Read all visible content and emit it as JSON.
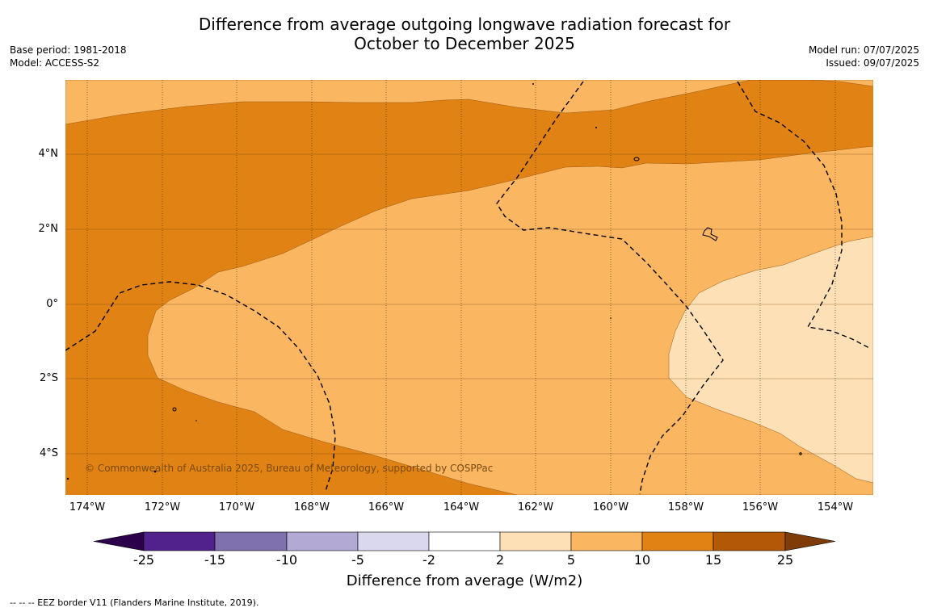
{
  "title": {
    "line1": "Difference from average outgoing longwave radiation forecast for",
    "line2": "October to December 2025"
  },
  "meta_left": {
    "base_period": "Base period: 1981-2018",
    "model": "Model: ACCESS-S2"
  },
  "meta_right": {
    "model_run": "Model run: 07/07/2025",
    "issued": "Issued: 09/07/2025"
  },
  "lat_labels": [
    "4°N",
    "2°N",
    "0°",
    "2°S",
    "4°S"
  ],
  "lon_labels": [
    "174°W",
    "172°W",
    "170°W",
    "168°W",
    "166°W",
    "164°W",
    "162°W",
    "160°W",
    "158°W",
    "156°W",
    "154°W"
  ],
  "copyright": "© Commonwealth of Australia 2025, Bureau of Meteorology, supported by COSPPac",
  "colorbar": {
    "ticks": [
      "-25",
      "-15",
      "-10",
      "-5",
      "-2",
      "2",
      "5",
      "10",
      "15",
      "25"
    ],
    "colors": [
      "#52228c",
      "#7f70ae",
      "#b2a9d4",
      "#d9d8ee",
      "#ffffff",
      "#fde0b6",
      "#fbb662",
      "#e08214",
      "#b35806"
    ],
    "under_color": "#2d004b",
    "over_color": "#7f3b08",
    "label": "Difference from average (W/m2)"
  },
  "footnote": "--  --  -- EEZ border V11 (Flanders Marine Institute, 2019)."
}
